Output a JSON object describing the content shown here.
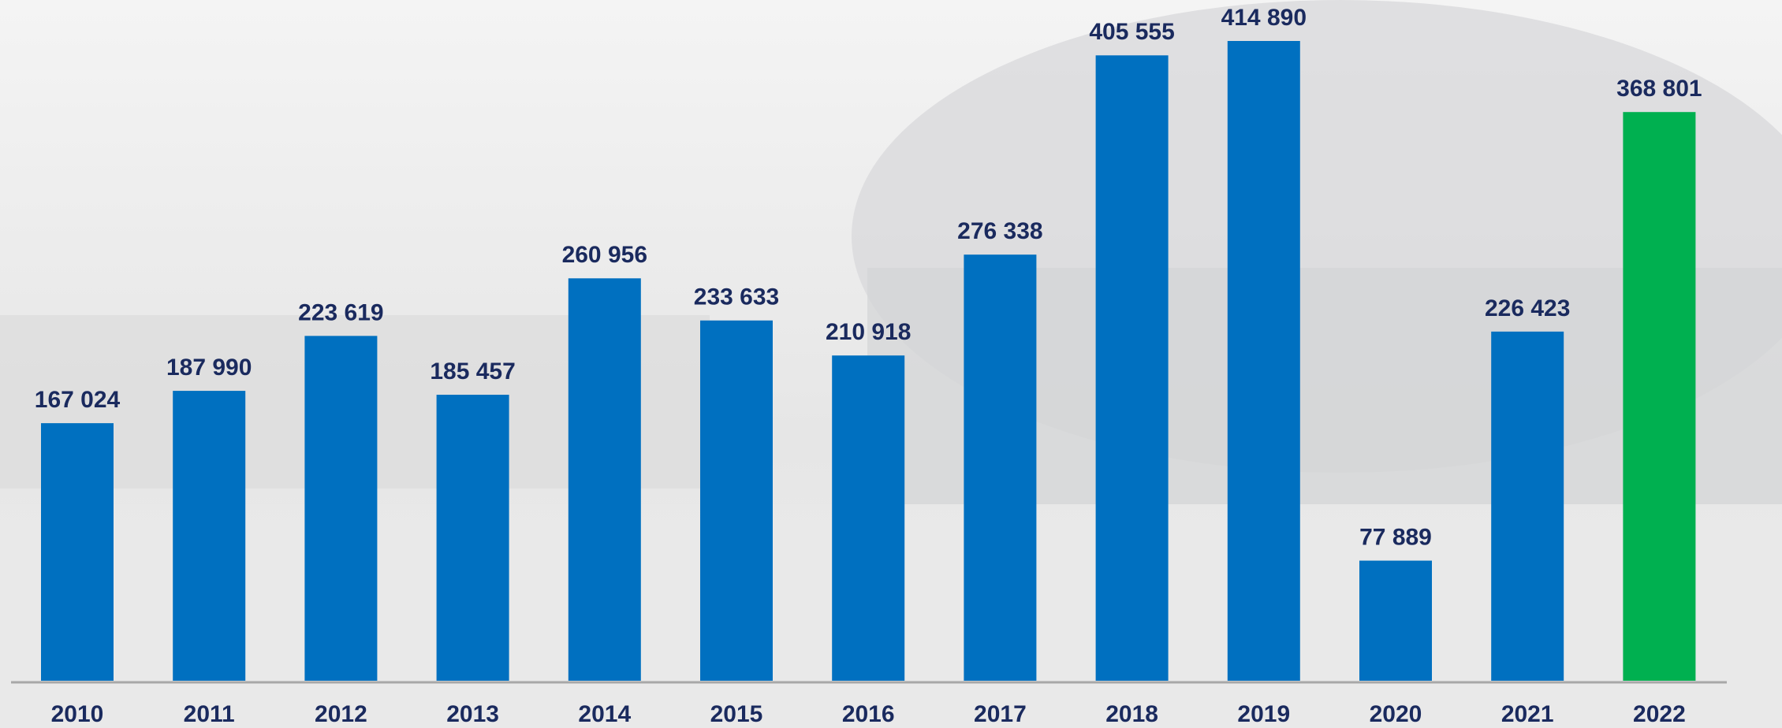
{
  "chart_data": {
    "type": "bar",
    "categories": [
      "2010",
      "2011",
      "2012",
      "2013",
      "2014",
      "2015",
      "2016",
      "2017",
      "2018",
      "2019",
      "2020",
      "2021",
      "2022"
    ],
    "values": [
      167024,
      187990,
      223619,
      185457,
      260956,
      233633,
      210918,
      276338,
      405555,
      414890,
      77889,
      226423,
      368801
    ],
    "value_labels": [
      "167 024",
      "187 990",
      "223 619",
      "185 457",
      "260 956",
      "233 633",
      "210 918",
      "276 338",
      "405 555",
      "414 890",
      "77 889",
      "226 423",
      "368 801"
    ],
    "colors": [
      "#0070c0",
      "#0070c0",
      "#0070c0",
      "#0070c0",
      "#0070c0",
      "#0070c0",
      "#0070c0",
      "#0070c0",
      "#0070c0",
      "#0070c0",
      "#0070c0",
      "#0070c0",
      "#00b050"
    ]
  }
}
